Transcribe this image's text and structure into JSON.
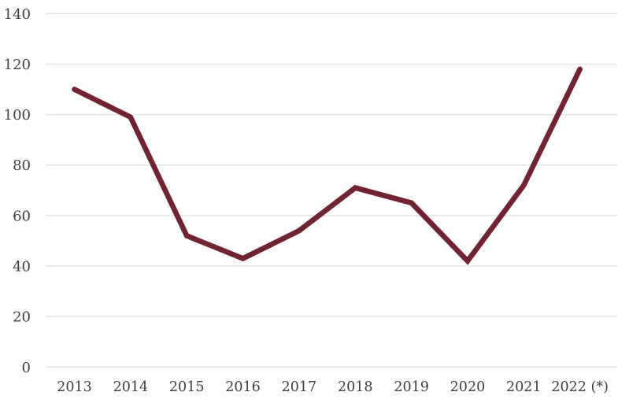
{
  "chart_data": {
    "type": "line",
    "categories": [
      "2013",
      "2014",
      "2015",
      "2016",
      "2017",
      "2018",
      "2019",
      "2020",
      "2021",
      "2022 (*)"
    ],
    "values": [
      110,
      99,
      52,
      43,
      54,
      71,
      65,
      42,
      72,
      118
    ],
    "series": [
      {
        "name": "value",
        "values": [
          110,
          99,
          52,
          43,
          54,
          71,
          65,
          42,
          72,
          118
        ]
      }
    ],
    "title": "",
    "xlabel": "",
    "ylabel": "",
    "ylim": [
      0,
      140
    ],
    "ytick_step": 20,
    "yticks": [
      0,
      20,
      40,
      60,
      80,
      100,
      120,
      140
    ],
    "grid": true,
    "legend": false,
    "line_color": "#722332",
    "gridline_color": "#E2E2E2",
    "tick_label_color": "#3F3F3F",
    "background_color": "#FFFFFF"
  }
}
